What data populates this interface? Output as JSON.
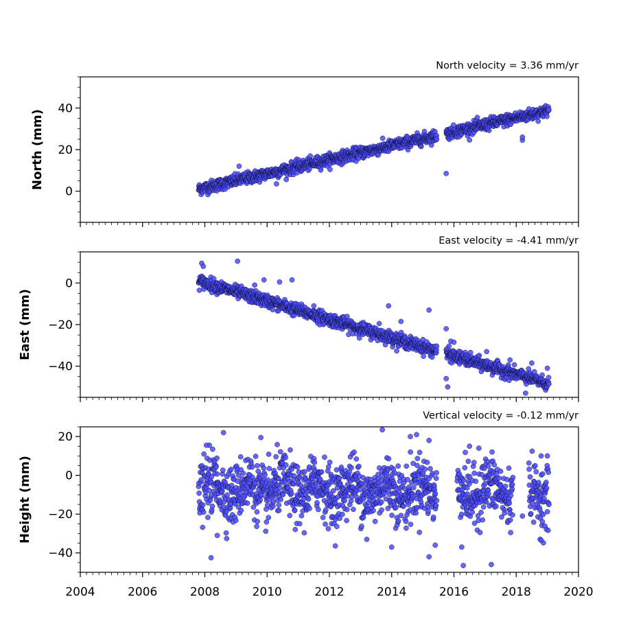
{
  "chart_data": [
    {
      "type": "scatter",
      "name": "north-panel",
      "title": "",
      "xlabel": "",
      "ylabel": "North (mm)",
      "annotation": "North velocity = 3.36 mm/yr",
      "xlim": [
        2004,
        2020
      ],
      "ylim": [
        -15,
        55
      ],
      "yticks": [
        0,
        20,
        40
      ],
      "ytick_labels": [
        "0",
        "20",
        "40"
      ],
      "show_xtick_labels": false,
      "trend": {
        "start": 2007.8,
        "end": 2019.05,
        "value_at_start": 1.0,
        "slope": 3.36,
        "scatter": 1.4
      },
      "gaps": [
        [
          2015.45,
          2015.75
        ]
      ],
      "outliers": [
        [
          2015.75,
          8.5
        ],
        [
          2018.2,
          24.5
        ],
        [
          2018.2,
          26.0
        ],
        [
          2009.1,
          12.0
        ],
        [
          2010.3,
          3.5
        ]
      ],
      "color": "#4c4cff"
    },
    {
      "type": "scatter",
      "name": "east-panel",
      "title": "",
      "xlabel": "",
      "ylabel": "East (mm)",
      "annotation": "East velocity = -4.41 mm/yr",
      "xlim": [
        2004,
        2020
      ],
      "ylim": [
        -55,
        15
      ],
      "yticks": [
        -40,
        -20,
        0
      ],
      "ytick_labels": [
        "−40",
        "−20",
        "0"
      ],
      "show_xtick_labels": false,
      "trend": {
        "start": 2007.8,
        "end": 2019.05,
        "value_at_start": 1.0,
        "slope": -4.41,
        "scatter": 1.5
      },
      "gaps": [
        [
          2015.45,
          2015.75
        ]
      ],
      "outliers": [
        [
          2007.9,
          9.5
        ],
        [
          2007.95,
          8.0
        ],
        [
          2009.05,
          10.5
        ],
        [
          2009.6,
          -1.0
        ],
        [
          2009.9,
          1.5
        ],
        [
          2010.4,
          0.5
        ],
        [
          2010.8,
          1.5
        ],
        [
          2011.5,
          -11.0
        ],
        [
          2013.1,
          -20.0
        ],
        [
          2013.6,
          -19.5
        ],
        [
          2013.9,
          -11.0
        ],
        [
          2014.3,
          -18.5
        ],
        [
          2015.2,
          -13.0
        ],
        [
          2015.75,
          -22.0
        ],
        [
          2015.9,
          -28.0
        ],
        [
          2016.0,
          -28.5
        ],
        [
          2017.05,
          -33.0
        ],
        [
          2017.8,
          -37.0
        ],
        [
          2018.5,
          -38.5
        ],
        [
          2019.0,
          -41.0
        ],
        [
          2015.75,
          -46.0
        ],
        [
          2015.8,
          -50.0
        ],
        [
          2018.3,
          -53.0
        ]
      ],
      "color": "#4c4cff"
    },
    {
      "type": "scatter",
      "name": "height-panel",
      "title": "",
      "xlabel": "",
      "ylabel": "Height (mm)",
      "annotation": "Vertical velocity = -0.12 mm/yr",
      "xlim": [
        2004,
        2020
      ],
      "ylim": [
        -50,
        25
      ],
      "yticks": [
        -40,
        -20,
        0,
        20
      ],
      "ytick_labels": [
        "−40",
        "−20",
        "0",
        "20"
      ],
      "show_xtick_labels": true,
      "xticks": [
        2004,
        2006,
        2008,
        2010,
        2012,
        2014,
        2016,
        2018,
        2020
      ],
      "xtick_labels": [
        "2004",
        "2006",
        "2008",
        "2010",
        "2012",
        "2014",
        "2016",
        "2018",
        "2020"
      ],
      "trend": {
        "start": 2007.8,
        "end": 2019.05,
        "value_at_start": -7.0,
        "slope": -0.12,
        "scatter": 7.5
      },
      "gaps": [
        [
          2015.45,
          2016.1
        ],
        [
          2017.9,
          2018.4
        ]
      ],
      "outliers": [
        [
          2008.6,
          22.0
        ],
        [
          2009.8,
          19.5
        ],
        [
          2013.7,
          23.5
        ],
        [
          2014.6,
          20.0
        ],
        [
          2014.8,
          21.0
        ],
        [
          2015.2,
          18.0
        ],
        [
          2008.05,
          15.5
        ],
        [
          2008.2,
          -42.5
        ],
        [
          2016.3,
          -46.5
        ],
        [
          2017.2,
          -46.0
        ],
        [
          2015.2,
          -42.0
        ],
        [
          2015.4,
          -36.0
        ],
        [
          2018.2,
          -21.0
        ],
        [
          2018.8,
          -33.5
        ],
        [
          2008.4,
          -31.0
        ],
        [
          2013.2,
          -33.0
        ],
        [
          2014.0,
          -37.0
        ],
        [
          2016.25,
          -37.0
        ],
        [
          2016.5,
          15.0
        ],
        [
          2016.8,
          14.0
        ],
        [
          2018.8,
          10.0
        ],
        [
          2019.0,
          10.0
        ]
      ],
      "color": "#4c4cff"
    }
  ]
}
